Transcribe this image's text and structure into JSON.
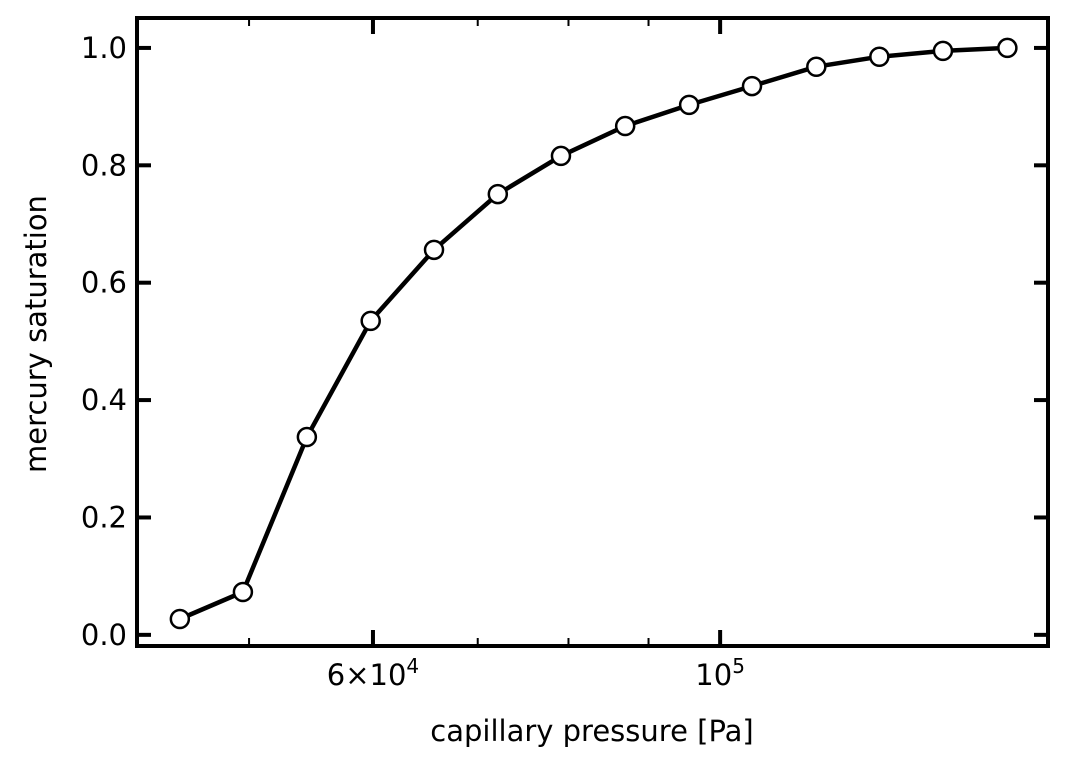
{
  "chart_data": {
    "type": "line",
    "title": "",
    "xlabel": "capillary pressure [Pa]",
    "ylabel": "mercury saturation",
    "xscale": "log",
    "xlim": [
      42400,
      162000
    ],
    "ylim": [
      -0.019,
      1.051
    ],
    "grid": false,
    "x_major_ticks": [
      {
        "value": 60000,
        "label_base": "6×10",
        "label_exp": "4"
      },
      {
        "value": 100000,
        "label_base": "10",
        "label_exp": "5"
      }
    ],
    "x_minor_ticks": [
      50000,
      70000,
      80000,
      90000
    ],
    "y_ticks": [
      0.0,
      0.2,
      0.4,
      0.6,
      0.8,
      1.0
    ],
    "y_tick_labels": [
      "0.0",
      "0.2",
      "0.4",
      "0.6",
      "0.8",
      "1.0"
    ],
    "series": [
      {
        "name": "mercury saturation",
        "color": "#000000",
        "marker": "circle-open",
        "x": [
          45160,
          49550,
          54440,
          59800,
          65640,
          72100,
          79120,
          86960,
          95540,
          104800,
          115200,
          126400,
          138800,
          152600
        ],
        "y": [
          0.027,
          0.073,
          0.337,
          0.535,
          0.656,
          0.751,
          0.816,
          0.867,
          0.903,
          0.935,
          0.968,
          0.985,
          0.995,
          1.0
        ]
      }
    ]
  }
}
